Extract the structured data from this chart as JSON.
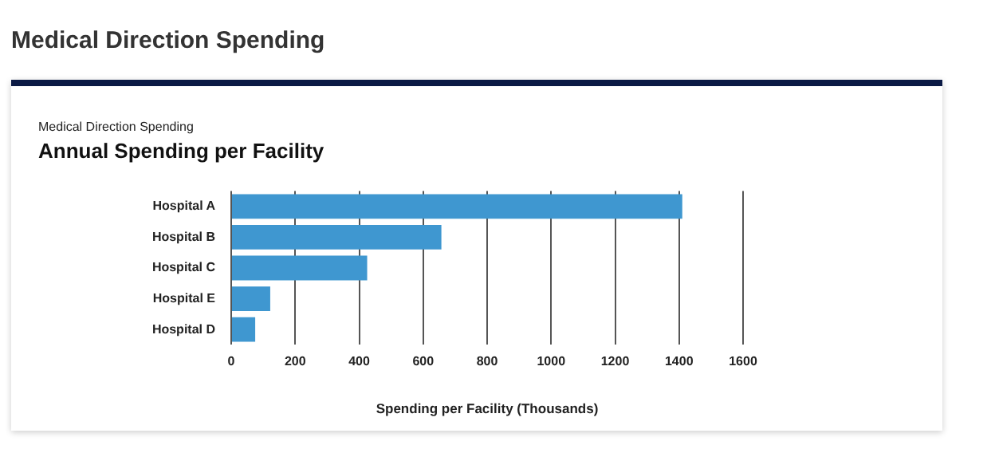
{
  "chart_data": {
    "type": "bar",
    "orientation": "horizontal",
    "title": "Medical Direction Spending",
    "subtitle": "Annual Spending per Facility",
    "annotations": [
      "Medical Direction Spending"
    ],
    "xlabel": "Spending per Facility (Thousands)",
    "categories": [
      "Hospital A",
      "Hospital B",
      "Hospital C",
      "Hospital E",
      "Hospital D"
    ],
    "values": [
      1410,
      657,
      425,
      122,
      75
    ],
    "color": "#3f97d0",
    "xlim": [
      0,
      1600
    ],
    "xticks": [
      0,
      200,
      400,
      600,
      800,
      1000,
      1200,
      1400,
      1600
    ],
    "grid": "x",
    "legend": false
  }
}
